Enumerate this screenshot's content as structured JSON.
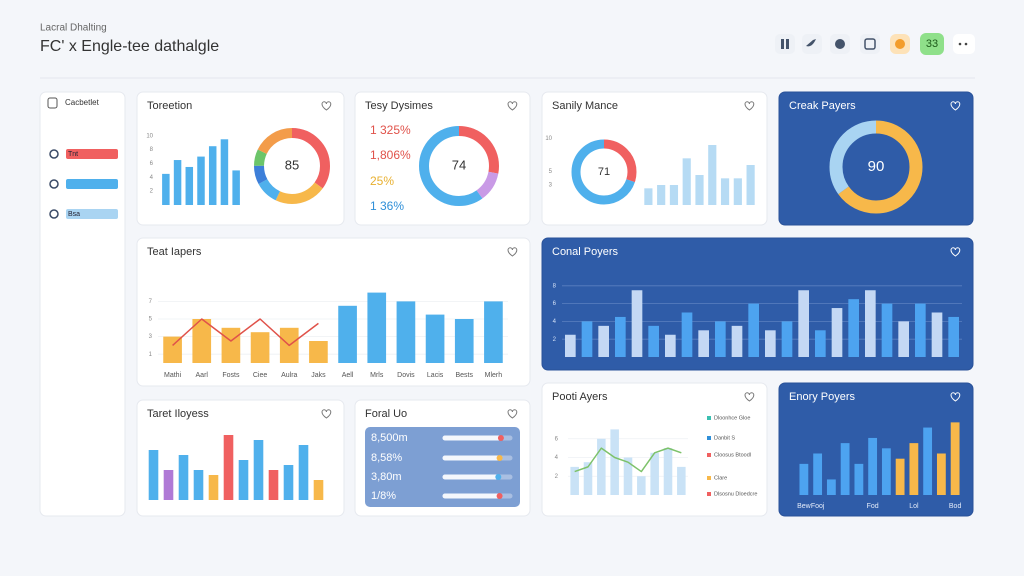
{
  "header": {
    "subtitle": "Lacral Dhalting",
    "title": "FC' x Engle-tee dathalgle",
    "badge": "33"
  },
  "sidebar": {
    "title": "Cacbetlet",
    "items": [
      {
        "label": "Tnt",
        "color": "#f06060"
      },
      {
        "color": "#4fb0ec"
      },
      {
        "label": "Bsa",
        "color": "#a9d4f2"
      }
    ]
  },
  "panels": [
    {
      "title": "Toreetion",
      "theme": "light",
      "charts": [
        {
          "type": "bar",
          "values": [
            4.5,
            6.5,
            5.5,
            7,
            8.5,
            9.5,
            5
          ],
          "colors": [
            "#4fb0ec"
          ],
          "ylim": [
            0,
            12
          ],
          "yticks": [
            2,
            4,
            6,
            8,
            10
          ]
        },
        {
          "type": "donut",
          "center": 85,
          "values": [
            35,
            22,
            10,
            8,
            7,
            18
          ],
          "colors": [
            "#f06060",
            "#f7b84a",
            "#4fb0ec",
            "#3d7fd9",
            "#6cc56a",
            "#f39c4a"
          ]
        }
      ]
    },
    {
      "title": "Tesy Dysimes",
      "theme": "light",
      "charts": [
        {
          "type": "list",
          "items": [
            {
              "text": "1 325%",
              "color": "#e0524a"
            },
            {
              "text": "1,806%",
              "color": "#e0524a"
            },
            {
              "text": "25%",
              "color": "#e8b030"
            },
            {
              "text": "1 36%",
              "color": "#2f8fd8"
            }
          ]
        },
        {
          "type": "donut",
          "center": 74,
          "values": [
            28,
            12,
            60
          ],
          "colors": [
            "#f06060",
            "#c99ae6",
            "#4fb0ec"
          ]
        }
      ]
    },
    {
      "title": "Sanily Mance",
      "theme": "light",
      "charts": [
        {
          "type": "donut",
          "center": 71,
          "values": [
            30,
            70
          ],
          "colors": [
            "#f06060",
            "#4fb0ec"
          ]
        },
        {
          "type": "bar",
          "values": [
            2.5,
            3,
            3,
            7,
            4.5,
            9,
            4,
            4,
            6
          ],
          "colors": [
            "#b6dbf4"
          ],
          "ylim": [
            0,
            12
          ],
          "yticks": [
            3,
            5,
            10
          ]
        }
      ]
    },
    {
      "title": "Creak Payers",
      "theme": "dark",
      "charts": [
        {
          "type": "donut",
          "center": 90,
          "values": [
            65,
            35
          ],
          "colors": [
            "#f7b84a",
            "#a9d4f2"
          ]
        }
      ]
    },
    {
      "title": "Teat Iapers",
      "theme": "light",
      "charts": [
        {
          "type": "bar",
          "categories": [
            "Mathi",
            "Aarl",
            "Fosts",
            "Ciee",
            "Aulra",
            "Jaks",
            "Aell",
            "Mrls",
            "Dovis",
            "Lacis",
            "Bests",
            "Mlerh"
          ],
          "values": [
            3,
            5,
            4,
            3.5,
            4,
            2.5,
            6.5,
            8,
            7,
            5.5,
            5,
            7
          ],
          "colors": [
            "#f7b84a",
            "#f7b84a",
            "#f7b84a",
            "#f7b84a",
            "#f7b84a",
            "#f7b84a",
            "#4fb0ec",
            "#4fb0ec",
            "#4fb0ec",
            "#4fb0ec",
            "#4fb0ec",
            "#4fb0ec"
          ],
          "ylim": [
            0,
            10
          ],
          "yticks": [
            1,
            3,
            5,
            7
          ],
          "grid": true,
          "line": {
            "color": "#e0524a",
            "values": [
              2,
              5,
              2.5,
              5,
              2,
              4.5,
              null,
              null,
              null,
              null,
              null,
              null
            ]
          }
        }
      ]
    },
    {
      "title": "Conal Poyers",
      "theme": "dark",
      "charts": [
        {
          "type": "bar",
          "values": [
            2.5,
            4,
            3.5,
            4.5,
            7.5,
            3.5,
            2.5,
            5,
            3,
            4,
            3.5,
            6,
            3,
            4,
            7.5,
            3,
            5.5,
            6.5,
            7.5,
            6,
            4,
            6,
            5,
            4.5
          ],
          "colors": [
            "#c4d8f4",
            "#4da3f0"
          ],
          "ylim": [
            0,
            10
          ],
          "yticks": [
            2,
            4,
            6,
            8
          ],
          "grid": true
        }
      ]
    },
    {
      "title": "Taret Iloyess",
      "theme": "light",
      "charts": [
        {
          "type": "bar",
          "values": [
            5,
            3,
            4.5,
            3,
            2.5,
            6.5,
            4,
            6,
            3,
            3.5,
            5.5,
            2
          ],
          "colors": [
            "#4fb0ec",
            "#b07ad6",
            "#4fb0ec",
            "#4fb0ec",
            "#f7b84a",
            "#f06060",
            "#4fb0ec",
            "#4fb0ec",
            "#f06060",
            "#4fb0ec",
            "#4fb0ec",
            "#f7b84a"
          ],
          "ylim": [
            0,
            7
          ]
        }
      ]
    },
    {
      "title": "Foral Uo",
      "theme": "light",
      "charts": [
        {
          "type": "sliders",
          "rows": [
            {
              "text": "8,500m",
              "level": 86,
              "color": "#f06060"
            },
            {
              "text": "8,58%",
              "level": 84,
              "color": "#f7b84a"
            },
            {
              "text": "3,80m",
              "level": 82,
              "color": "#4fb0ec"
            },
            {
              "text": "1/8%",
              "level": 84,
              "color": "#f06060"
            }
          ]
        }
      ]
    },
    {
      "title": "Pooti Ayers",
      "theme": "light",
      "charts": [
        {
          "type": "bar",
          "values": [
            3,
            3.5,
            6,
            7,
            4,
            2,
            4.5,
            5,
            3
          ],
          "colors": [
            "#c9e2f6"
          ],
          "ylim": [
            0,
            8
          ],
          "yticks": [
            2,
            4,
            6
          ],
          "grid": true,
          "line": {
            "color": "#7dc26a",
            "values": [
              2.5,
              3,
              5,
              4,
              3.5,
              2.5,
              4.5,
              5,
              4.5
            ]
          }
        },
        {
          "type": "legend",
          "items": [
            {
              "text": "Dloonhce Gloe",
              "color": "#3bbfb0"
            },
            {
              "text": "Danbit S",
              "color": "#2f8fd8"
            },
            {
              "text": "Cloosus Btoodl",
              "color": "#f06060"
            },
            {
              "text": "Clare",
              "color": "#f7b84a"
            },
            {
              "text": "Dlsosnu Dloedcre",
              "color": "#f06060"
            }
          ]
        }
      ]
    },
    {
      "title": "Enory Poyers",
      "theme": "dark",
      "charts": [
        {
          "type": "bar",
          "categories": [
            "Bew",
            "Fooj",
            null,
            null,
            null,
            "Fod",
            null,
            null,
            "Lol",
            null,
            null,
            "Bod"
          ],
          "values": [
            3,
            4,
            1.5,
            5,
            3,
            5.5,
            4.5,
            3.5,
            5,
            6.5,
            4,
            7
          ],
          "colors": [
            "#4da3f0",
            "#4da3f0",
            "#4da3f0",
            "#4da3f0",
            "#4da3f0",
            "#4da3f0",
            "#4da3f0",
            "#f7b84a",
            "#f7b84a",
            "#4da3f0",
            "#f7b84a",
            "#f7b84a"
          ],
          "ylim": [
            0,
            8
          ]
        }
      ]
    }
  ]
}
